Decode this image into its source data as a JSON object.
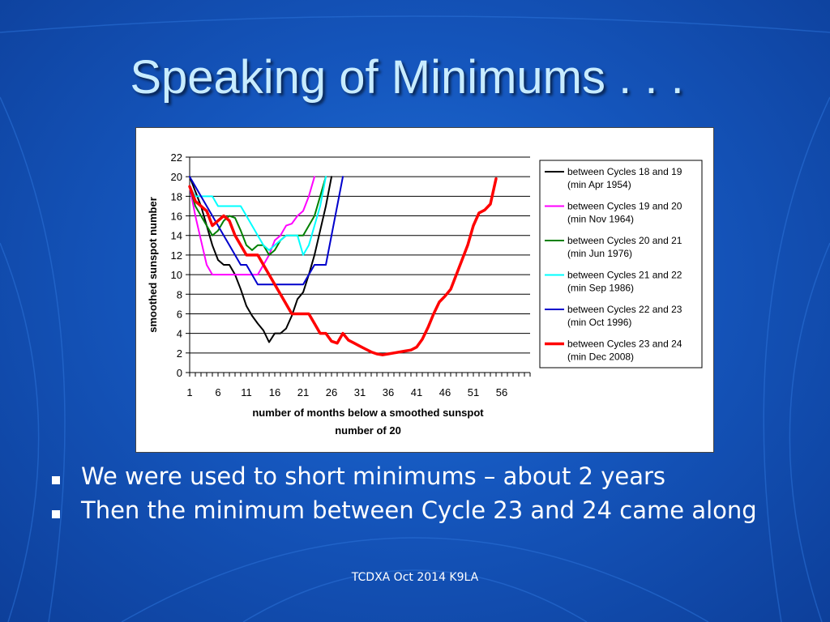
{
  "slide": {
    "title": "Speaking of Minimums . . .",
    "bullets": [
      "We were used to short minimums – about 2 years",
      "Then the minimum between Cycle 23 and 24 came along"
    ],
    "footer": "TCDXA Oct 2014 K9LA"
  },
  "chart_data": {
    "type": "line",
    "title": "",
    "xlabel_lines": [
      "number of months below a smoothed sunspot",
      "number of 20"
    ],
    "ylabel": "smoothed sunspot number",
    "xlim": [
      1,
      61
    ],
    "ylim": [
      0,
      22
    ],
    "x_ticks": [
      1,
      6,
      11,
      16,
      21,
      26,
      31,
      36,
      41,
      46,
      51,
      56
    ],
    "y_ticks": [
      0,
      2,
      4,
      6,
      8,
      10,
      12,
      14,
      16,
      18,
      20,
      22
    ],
    "grid": "horizontal",
    "legend_position": "right",
    "series": [
      {
        "name": "between Cycles 18 and 19",
        "name_line2": "(min Apr 1954)",
        "color": "#000000",
        "values": [
          20,
          18.5,
          17,
          15,
          13,
          11.5,
          11,
          11,
          10,
          8.5,
          6.8,
          5.8,
          5,
          4.3,
          3.1,
          4,
          4,
          4.5,
          5.8,
          7.5,
          8.2,
          10,
          12,
          14.5,
          17,
          20
        ]
      },
      {
        "name": "between Cycles 19 and 20",
        "name_line2": "(min Nov 1964)",
        "color": "#ff00ff",
        "values": [
          19,
          16,
          13.5,
          11,
          10,
          10,
          10,
          10,
          10,
          10,
          10,
          10,
          10,
          11,
          12,
          13.5,
          14,
          15,
          15.2,
          16,
          16.5,
          18,
          20
        ]
      },
      {
        "name": "between Cycles 20 and 21",
        "name_line2": "(min Jun 1976)",
        "color": "#008000",
        "values": [
          19,
          17,
          16,
          15,
          14,
          14.5,
          15.5,
          16,
          15.8,
          14.5,
          13,
          12.5,
          13,
          13,
          12,
          12.5,
          13.5,
          14,
          14,
          14,
          14,
          15,
          16,
          18,
          20
        ]
      },
      {
        "name": "between Cycles 21 and 22",
        "name_line2": "(min Sep 1986)",
        "color": "#00ffff",
        "values": [
          19,
          18,
          18,
          18,
          18,
          17,
          17,
          17,
          17,
          17,
          16,
          15,
          14,
          13,
          12.5,
          13,
          13.5,
          14,
          14,
          14,
          12,
          13,
          15,
          17,
          20
        ]
      },
      {
        "name": "between Cycles 22 and 23",
        "name_line2": "(min Oct 1996)",
        "color": "#0000cc",
        "values": [
          20,
          19,
          18,
          17,
          16,
          15,
          14,
          13,
          12,
          11,
          11,
          10,
          9,
          9,
          9,
          9,
          9,
          9,
          9,
          9,
          9,
          10,
          11,
          11,
          11,
          14,
          17,
          20
        ]
      },
      {
        "name": "between Cycles 23 and 24",
        "name_line2": "(min Dec 2008)",
        "color": "#ff0000",
        "values": [
          19,
          17.5,
          17,
          16.5,
          15,
          15.5,
          16,
          15.5,
          14,
          13,
          12,
          12,
          12,
          11,
          10,
          9,
          8,
          7,
          6,
          6,
          6,
          6,
          5,
          4,
          4,
          3.2,
          3,
          4,
          3.3,
          3,
          2.7,
          2.4,
          2.1,
          1.9,
          1.8,
          1.9,
          2,
          2.1,
          2.2,
          2.3,
          2.6,
          3.4,
          4.6,
          6,
          7.2,
          7.8,
          8.5,
          10,
          11.5,
          13,
          15,
          16.3,
          16.6,
          17.2,
          19.8
        ]
      }
    ]
  }
}
